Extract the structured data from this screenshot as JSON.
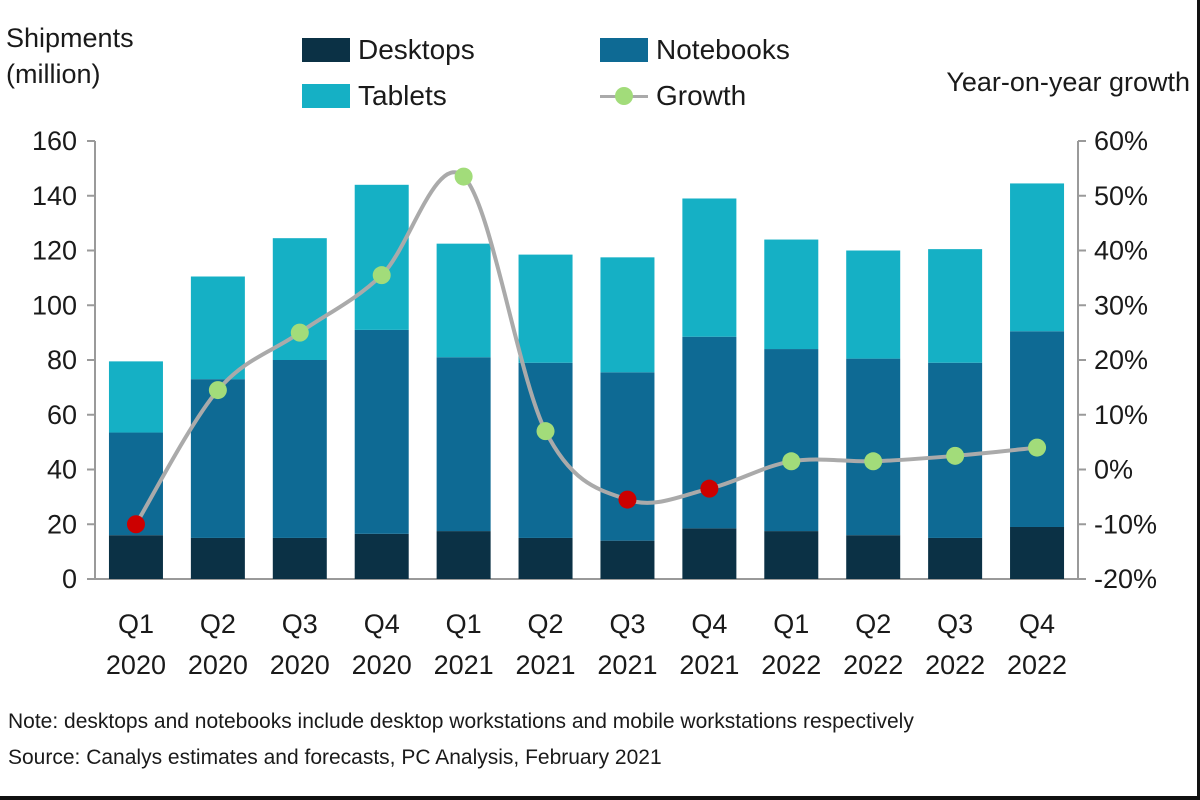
{
  "chart_data": {
    "type": "bar",
    "stacked": true,
    "ylabel": "Shipments\n(million)",
    "y2label": "Year-on-year growth",
    "ylim": [
      0,
      160
    ],
    "yticks": [
      0,
      20,
      40,
      60,
      80,
      100,
      120,
      140,
      160
    ],
    "y2lim": [
      -20,
      60
    ],
    "y2ticks": [
      "-20%",
      "-10%",
      "0%",
      "10%",
      "20%",
      "30%",
      "40%",
      "50%",
      "60%"
    ],
    "categories": [
      [
        "Q1",
        "2020"
      ],
      [
        "Q2",
        "2020"
      ],
      [
        "Q3",
        "2020"
      ],
      [
        "Q4",
        "2020"
      ],
      [
        "Q1",
        "2021"
      ],
      [
        "Q2",
        "2021"
      ],
      [
        "Q3",
        "2021"
      ],
      [
        "Q4",
        "2021"
      ],
      [
        "Q1",
        "2022"
      ],
      [
        "Q2",
        "2022"
      ],
      [
        "Q3",
        "2022"
      ],
      [
        "Q4",
        "2022"
      ]
    ],
    "series": [
      {
        "name": "Desktops",
        "color": "#0b3145",
        "values": [
          16,
          15,
          15,
          16.5,
          17.5,
          15,
          14,
          18.5,
          17.5,
          16,
          15,
          19
        ]
      },
      {
        "name": "Notebooks",
        "color": "#0e6a94",
        "values": [
          37.5,
          58,
          65,
          74.5,
          63.5,
          64,
          61.5,
          70,
          66.5,
          64.5,
          64,
          71.5
        ]
      },
      {
        "name": "Tablets",
        "color": "#15b0c5",
        "values": [
          26,
          37.5,
          44.5,
          53,
          41.5,
          39.5,
          42,
          50.5,
          40,
          39.5,
          41.5,
          54
        ]
      }
    ],
    "growth": {
      "name": "Growth",
      "line_color": "#aaaaaa",
      "positive_color": "#a2dc7a",
      "negative_color": "#cc0000",
      "values": [
        -10,
        14.5,
        25,
        35.5,
        53.5,
        7,
        -5.5,
        -3.5,
        1.5,
        1.5,
        2.5,
        4
      ]
    },
    "grid": false,
    "legend_position": "top"
  },
  "notes": [
    "Note: desktops and notebooks include desktop workstations and mobile workstations respectively",
    "Source: Canalys estimates and forecasts, PC Analysis, February 2021"
  ]
}
